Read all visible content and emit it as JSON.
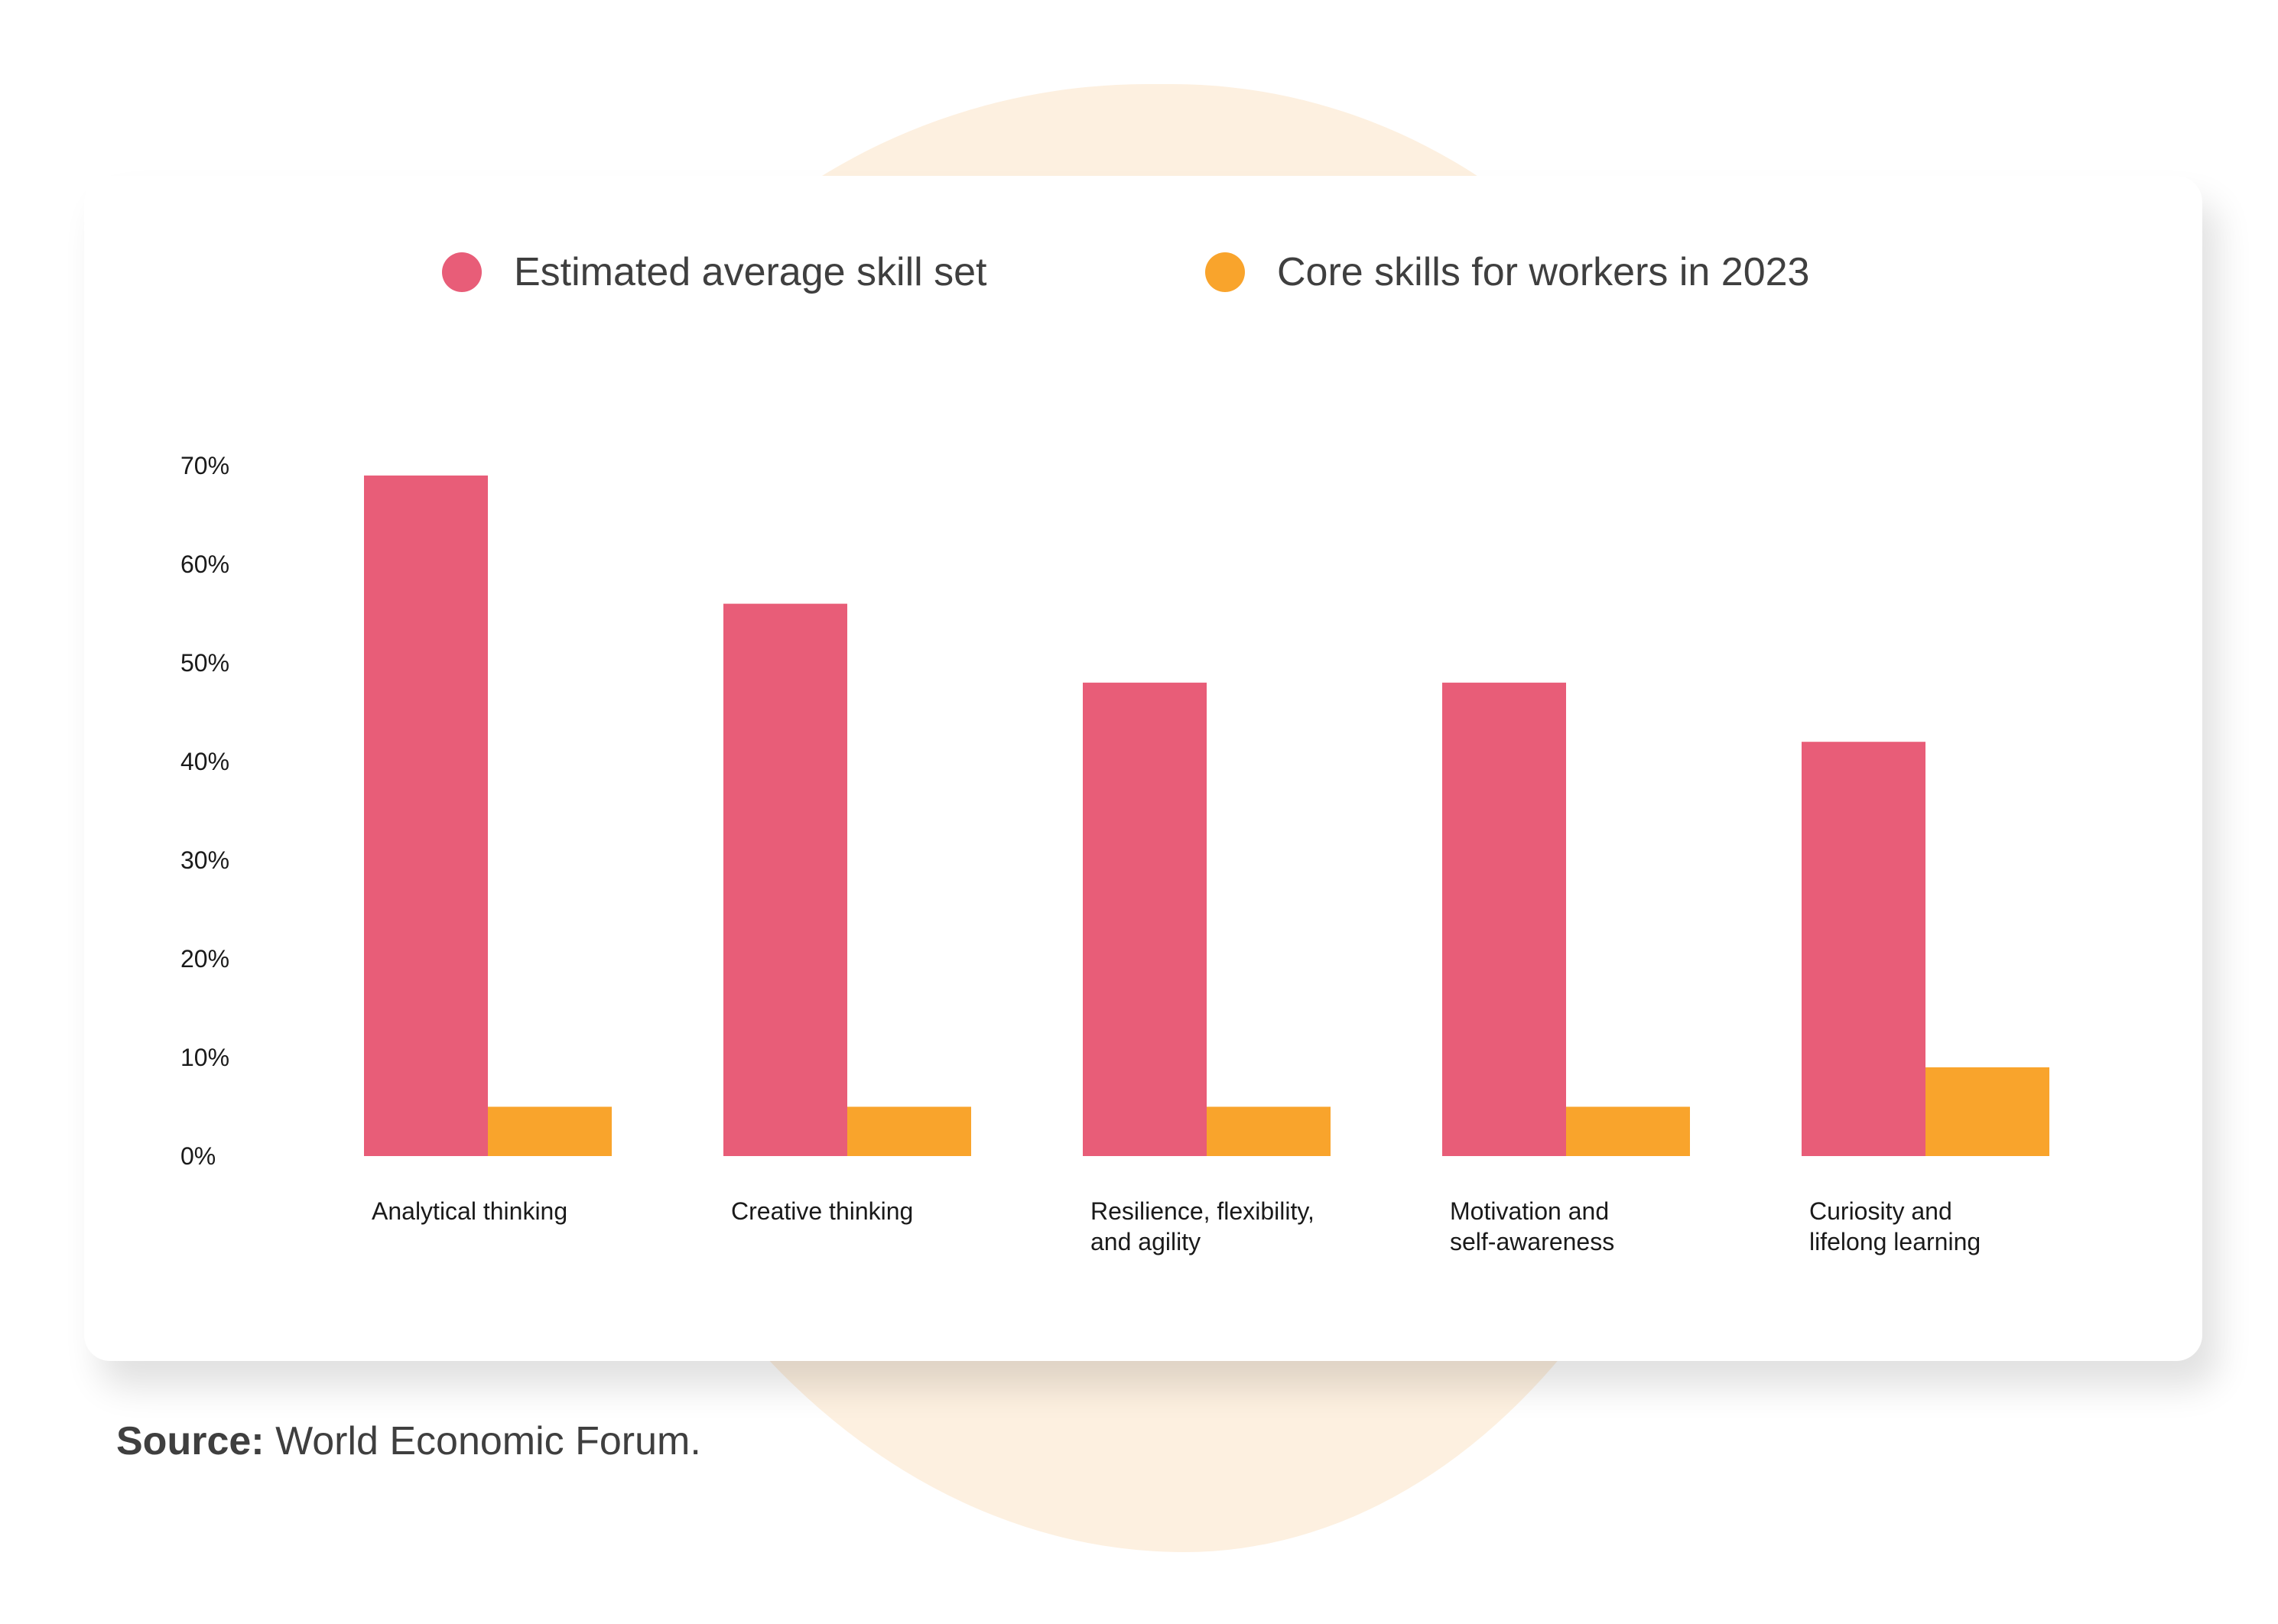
{
  "chart_data": {
    "type": "bar",
    "categories": [
      [
        "Analytical thinking"
      ],
      [
        "Creative thinking"
      ],
      [
        "Resilience, flexibility,",
        "and agility"
      ],
      [
        "Motivation and",
        "self-awareness"
      ],
      [
        "Curiosity and",
        "lifelong learning"
      ]
    ],
    "series": [
      {
        "name": "Estimated average skill set",
        "color": "#e85d78",
        "values": [
          69,
          56,
          48,
          48,
          42
        ]
      },
      {
        "name": "Core skills for workers in 2023",
        "color": "#f9a42c",
        "values": [
          5,
          5,
          5,
          5,
          9
        ]
      }
    ],
    "yticks": [
      "0%",
      "10%",
      "20%",
      "30%",
      "40%",
      "50%",
      "60%",
      "70%"
    ],
    "ylim": [
      0,
      70
    ],
    "grid": false,
    "legend_position": "top-center"
  },
  "source": {
    "label": "Source:",
    "text": "World Economic Forum."
  }
}
